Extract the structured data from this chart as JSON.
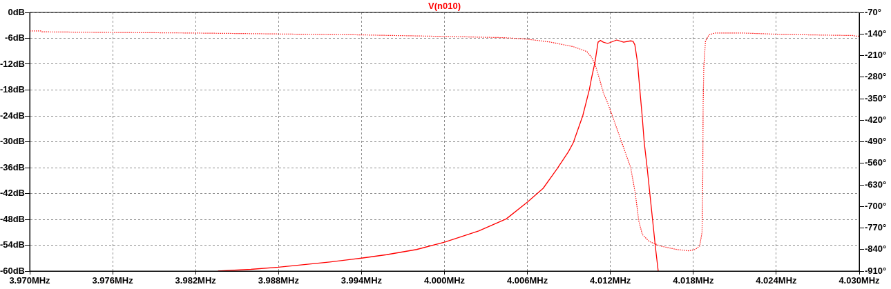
{
  "chart_data": {
    "type": "line",
    "title": "V(n010)",
    "grid": true,
    "marker": "none",
    "line_style": "solid",
    "xlim": [
      3.97,
      4.03
    ],
    "xticks": [
      {
        "value": 3.97,
        "label": "3.970MHz"
      },
      {
        "value": 3.976,
        "label": "3.976MHz"
      },
      {
        "value": 3.982,
        "label": "3.982MHz"
      },
      {
        "value": 3.988,
        "label": "3.988MHz"
      },
      {
        "value": 3.994,
        "label": "3.994MHz"
      },
      {
        "value": 4.0,
        "label": "4.000MHz"
      },
      {
        "value": 4.006,
        "label": "4.006MHz"
      },
      {
        "value": 4.012,
        "label": "4.012MHz"
      },
      {
        "value": 4.018,
        "label": "4.018MHz"
      },
      {
        "value": 4.024,
        "label": "4.024MHz"
      },
      {
        "value": 4.03,
        "label": "4.030MHz"
      }
    ],
    "ylim": [
      -60,
      0
    ],
    "yticks": [
      {
        "value": 0,
        "label": "0dB"
      },
      {
        "value": -6,
        "label": "-6dB"
      },
      {
        "value": -12,
        "label": "-12dB"
      },
      {
        "value": -18,
        "label": "-18dB"
      },
      {
        "value": -24,
        "label": "-24dB"
      },
      {
        "value": -30,
        "label": "-30dB"
      },
      {
        "value": -36,
        "label": "-36dB"
      },
      {
        "value": -42,
        "label": "-42dB"
      },
      {
        "value": -48,
        "label": "-48dB"
      },
      {
        "value": -54,
        "label": "-54dB"
      },
      {
        "value": -60,
        "label": "-60dB"
      }
    ],
    "y2lim": [
      -910,
      -70
    ],
    "y2ticks": [
      {
        "value": -70,
        "label": "-70°"
      },
      {
        "value": -140,
        "label": "-140°"
      },
      {
        "value": -210,
        "label": "-210°"
      },
      {
        "value": -280,
        "label": "-280°"
      },
      {
        "value": -350,
        "label": "-350°"
      },
      {
        "value": -420,
        "label": "-420°"
      },
      {
        "value": -490,
        "label": "-490°"
      },
      {
        "value": -560,
        "label": "-560°"
      },
      {
        "value": -630,
        "label": "-630°"
      },
      {
        "value": -700,
        "label": "-700°"
      },
      {
        "value": -770,
        "label": "-770°"
      },
      {
        "value": -840,
        "label": "-840°"
      },
      {
        "value": -910,
        "label": "-910°"
      }
    ],
    "series": [
      {
        "color": "#ff0000",
        "x": [
          3.98362,
          3.986,
          3.988,
          3.9917,
          3.994,
          3.99581,
          3.99798,
          4.0,
          4.00247,
          4.00447,
          4.006,
          4.00714,
          4.00814,
          4.00897,
          4.00932,
          4.01,
          4.01048,
          4.01064,
          4.01089,
          4.01111,
          4.01128,
          4.01149,
          4.01181,
          4.01213,
          4.01246,
          4.01296,
          4.01346,
          4.01364,
          4.01377,
          4.01396,
          4.01413,
          4.0143,
          4.01445,
          4.01466,
          4.01505,
          4.01525,
          4.01546
        ],
        "values": [
          -60,
          -59.6,
          -59.1,
          -57.9,
          -57.0,
          -56.2,
          -55.0,
          -53.3,
          -50.7,
          -47.9,
          -44.0,
          -40.8,
          -36.3,
          -32.3,
          -30.2,
          -24.0,
          -17.9,
          -15.2,
          -11.5,
          -6.9,
          -6.5,
          -6.9,
          -7.2,
          -6.8,
          -6.4,
          -6.9,
          -6.6,
          -6.7,
          -7.5,
          -11.5,
          -17.9,
          -24.0,
          -30.2,
          -36.0,
          -48.0,
          -54.2,
          -60
        ]
      },
      {
        "color": "#ff0000",
        "axis": "y2",
        "line_style": "dotted",
        "x": [
          3.97,
          3.9708,
          3.97085,
          3.976,
          3.982,
          3.988,
          3.994,
          4.0,
          4.0043,
          4.006,
          4.00762,
          4.0093,
          4.0103,
          4.01064,
          4.01089,
          4.01122,
          4.01147,
          4.01181,
          4.01213,
          4.0128,
          4.01347,
          4.0138,
          4.01393,
          4.01405,
          4.01431,
          4.01481,
          4.01564,
          4.01681,
          4.01764,
          4.01813,
          4.01846,
          4.01863,
          4.01868,
          4.01871,
          4.01876,
          4.01888,
          4.01913,
          4.01955,
          4.02163,
          4.02413,
          4.02645,
          4.0296,
          4.0297,
          4.03
        ],
        "values": [
          -130,
          -130,
          -133,
          -135,
          -137,
          -140,
          -143,
          -148,
          -152,
          -157,
          -166,
          -181,
          -197,
          -216,
          -238,
          -287,
          -328,
          -365,
          -404,
          -489,
          -574,
          -657,
          -702,
          -746,
          -791,
          -814,
          -829,
          -840,
          -844,
          -840,
          -829,
          -784,
          -634,
          -365,
          -246,
          -163,
          -143,
          -137,
          -137,
          -141,
          -143,
          -145,
          -147,
          -147
        ]
      }
    ]
  }
}
